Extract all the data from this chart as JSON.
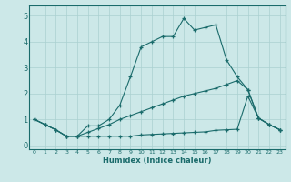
{
  "xlabel": "Humidex (Indice chaleur)",
  "ylabel": "",
  "bg_color": "#cce8e8",
  "line_color": "#1a6b6b",
  "grid_color": "#aad0d0",
  "xlim": [
    -0.5,
    23.5
  ],
  "ylim": [
    -0.15,
    5.4
  ],
  "xticks": [
    0,
    1,
    2,
    3,
    4,
    5,
    6,
    7,
    8,
    9,
    10,
    11,
    12,
    13,
    14,
    15,
    16,
    17,
    18,
    19,
    20,
    21,
    22,
    23
  ],
  "yticks": [
    0,
    1,
    2,
    3,
    4,
    5
  ],
  "line1_x": [
    0,
    1,
    2,
    3,
    4,
    5,
    6,
    7,
    8,
    9,
    10,
    11,
    12,
    13,
    14,
    15,
    16,
    17,
    18,
    19,
    20,
    21,
    22,
    23
  ],
  "line1_y": [
    1.0,
    0.8,
    0.6,
    0.35,
    0.35,
    0.75,
    0.75,
    1.0,
    1.55,
    2.65,
    3.8,
    4.0,
    4.2,
    4.2,
    4.9,
    4.45,
    4.55,
    4.65,
    3.3,
    2.65,
    2.15,
    1.05,
    0.8,
    0.6
  ],
  "line2_x": [
    0,
    1,
    2,
    3,
    4,
    5,
    6,
    7,
    8,
    9,
    10,
    11,
    12,
    13,
    14,
    15,
    16,
    17,
    18,
    19,
    20,
    21,
    22,
    23
  ],
  "line2_y": [
    1.0,
    0.8,
    0.6,
    0.35,
    0.35,
    0.5,
    0.65,
    0.8,
    1.0,
    1.15,
    1.3,
    1.45,
    1.6,
    1.75,
    1.9,
    2.0,
    2.1,
    2.2,
    2.35,
    2.5,
    2.15,
    1.05,
    0.8,
    0.6
  ],
  "line3_x": [
    0,
    1,
    2,
    3,
    4,
    5,
    6,
    7,
    8,
    9,
    10,
    11,
    12,
    13,
    14,
    15,
    16,
    17,
    18,
    19,
    20,
    21,
    22,
    23
  ],
  "line3_y": [
    1.0,
    0.8,
    0.6,
    0.35,
    0.35,
    0.35,
    0.35,
    0.35,
    0.35,
    0.35,
    0.4,
    0.42,
    0.44,
    0.46,
    0.48,
    0.5,
    0.52,
    0.58,
    0.6,
    0.62,
    1.9,
    1.05,
    0.8,
    0.6
  ]
}
